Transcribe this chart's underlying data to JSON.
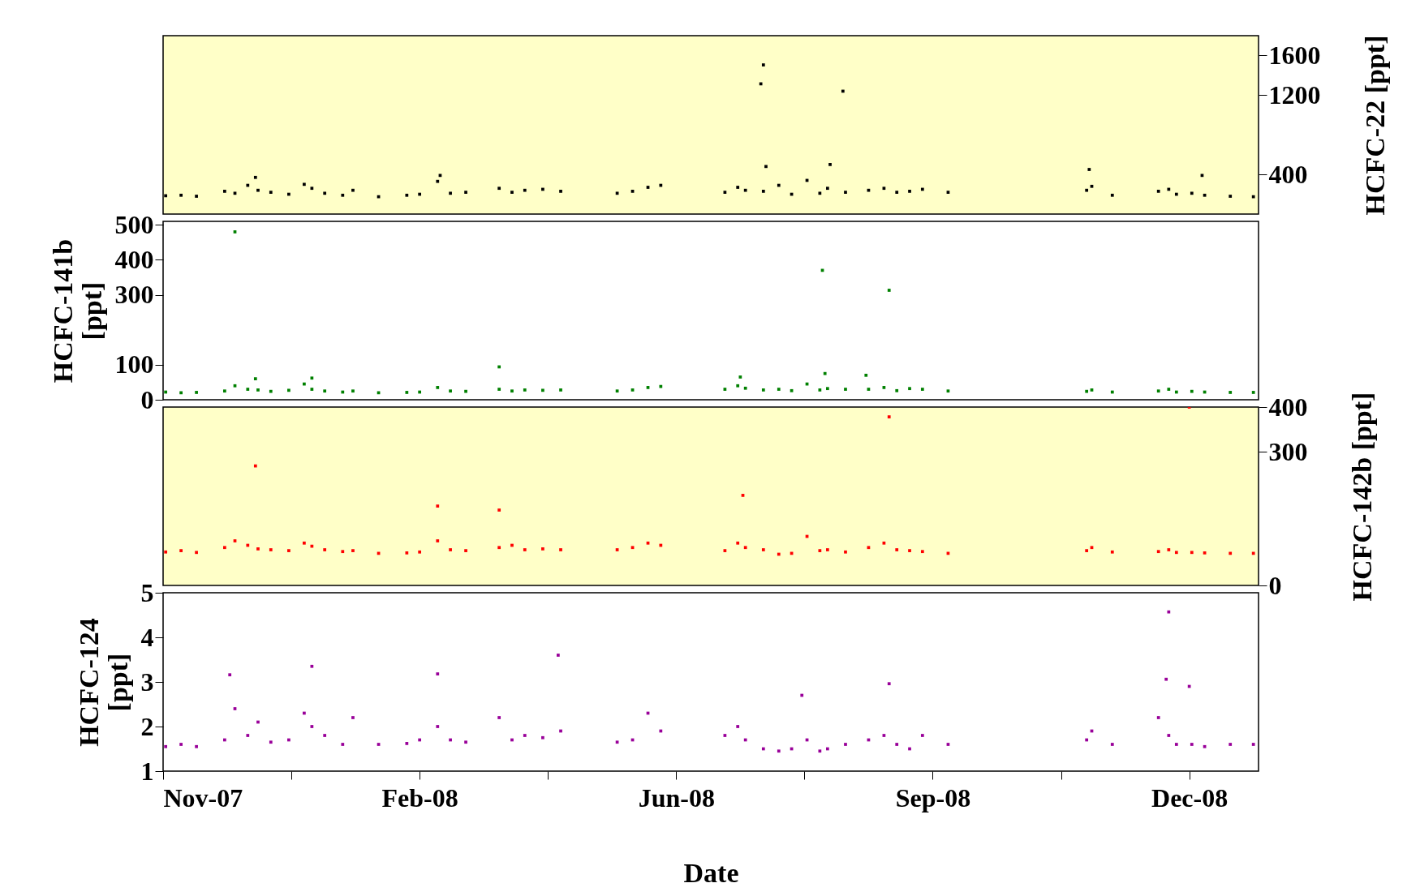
{
  "chart_data": [
    {
      "type": "scatter",
      "marker": "square",
      "grid": false,
      "legend": false,
      "tick_labels": "y",
      "xlim": [
        "2007-11-20",
        "2009-01-20"
      ],
      "y2label": "HCFC-22 [ppt]",
      "y2lim": [
        0,
        1800
      ],
      "y2ticks": [
        400,
        1200,
        1600
      ],
      "x": [
        "2007-11-21",
        "2007-11-27",
        "2007-12-03",
        "2007-12-14",
        "2007-12-18",
        "2007-12-23",
        "2007-12-27",
        "2008-01-01",
        "2008-01-08",
        "2008-01-14",
        "2008-01-17",
        "2008-01-22",
        "2008-01-29",
        "2008-02-02",
        "2008-02-12",
        "2008-02-23",
        "2008-02-28",
        "2008-03-06",
        "2008-03-11",
        "2008-03-17",
        "2008-03-30",
        "2008-04-04",
        "2008-04-09",
        "2008-04-16",
        "2008-04-23",
        "2008-05-15",
        "2008-05-21",
        "2008-05-27",
        "2008-06-01",
        "2008-06-26",
        "2008-07-01",
        "2008-07-04",
        "2008-07-11",
        "2008-07-17",
        "2008-07-22",
        "2008-07-28",
        "2008-08-02",
        "2008-08-05",
        "2008-08-12",
        "2008-08-21",
        "2008-08-27",
        "2008-09-01",
        "2008-09-06",
        "2008-09-11",
        "2008-09-21",
        "2008-11-14",
        "2008-11-16",
        "2008-11-24",
        "2008-12-12",
        "2008-12-16",
        "2008-12-19",
        "2008-12-25",
        "2008-12-30",
        "2009-01-09",
        "2009-01-18",
        "2008-07-11",
        "2008-07-10",
        "2008-08-11",
        "2008-07-12",
        "2008-08-06",
        "2008-11-15",
        "2007-12-26",
        "2008-03-07",
        "2008-12-29"
      ],
      "series": [
        {
          "color": "#000000",
          "axis": "y2",
          "values": [
            185,
            190,
            180,
            230,
            210,
            290,
            240,
            220,
            200,
            300,
            260,
            210,
            190,
            240,
            175,
            190,
            200,
            330,
            210,
            220,
            260,
            220,
            240,
            250,
            230,
            210,
            230,
            270,
            290,
            220,
            270,
            240,
            230,
            290,
            200,
            340,
            210,
            260,
            220,
            240,
            260,
            220,
            230,
            250,
            220,
            240,
            280,
            190,
            230,
            250,
            200,
            210,
            190,
            180,
            175,
            1505,
            1314,
            1240,
            480,
            500,
            450,
            370,
            390,
            390
          ]
        }
      ]
    },
    {
      "type": "scatter",
      "marker": "square",
      "grid": false,
      "legend": false,
      "tick_labels": "y",
      "xlim": [
        "2007-11-20",
        "2009-01-20"
      ],
      "ylabel": "HCFC-141b [ppt]",
      "ylim": [
        0,
        510
      ],
      "yticks": [
        0,
        100,
        300,
        400,
        500
      ],
      "x": [
        "2007-11-21",
        "2007-11-27",
        "2007-12-03",
        "2007-12-14",
        "2007-12-18",
        "2007-12-23",
        "2007-12-27",
        "2008-01-01",
        "2008-01-08",
        "2008-01-14",
        "2008-01-17",
        "2008-01-22",
        "2008-01-29",
        "2008-02-02",
        "2008-02-12",
        "2008-02-23",
        "2008-02-28",
        "2008-03-06",
        "2008-03-11",
        "2008-03-17",
        "2008-03-30",
        "2008-04-04",
        "2008-04-09",
        "2008-04-16",
        "2008-04-23",
        "2008-05-15",
        "2008-05-21",
        "2008-05-27",
        "2008-06-01",
        "2008-06-26",
        "2008-07-01",
        "2008-07-04",
        "2008-07-11",
        "2008-07-17",
        "2008-07-22",
        "2008-07-28",
        "2008-08-02",
        "2008-08-05",
        "2008-08-12",
        "2008-08-21",
        "2008-08-27",
        "2008-09-01",
        "2008-09-06",
        "2008-09-11",
        "2008-09-21",
        "2008-11-14",
        "2008-11-16",
        "2008-11-24",
        "2008-12-12",
        "2008-12-16",
        "2008-12-19",
        "2008-12-25",
        "2008-12-30",
        "2009-01-09",
        "2009-01-18",
        "2007-12-18",
        "2008-08-03",
        "2008-08-29",
        "2008-03-30",
        "2008-08-04",
        "2008-08-20",
        "2007-12-26",
        "2008-01-17",
        "2008-07-02"
      ],
      "series": [
        {
          "color": "#008000",
          "values": [
            22,
            20,
            21,
            25,
            40,
            30,
            28,
            24,
            27,
            45,
            30,
            25,
            22,
            25,
            20,
            21,
            22,
            35,
            25,
            24,
            30,
            25,
            28,
            27,
            28,
            25,
            28,
            35,
            38,
            30,
            40,
            33,
            28,
            30,
            26,
            45,
            28,
            32,
            30,
            30,
            35,
            26,
            32,
            30,
            25,
            24,
            28,
            22,
            25,
            30,
            22,
            24,
            22,
            21,
            21,
            480,
            370,
            313,
            94,
            75,
            70,
            60,
            62,
            65
          ]
        }
      ]
    },
    {
      "type": "scatter",
      "marker": "square",
      "grid": false,
      "legend": false,
      "tick_labels": "y",
      "xlim": [
        "2007-11-20",
        "2009-01-20"
      ],
      "y2label": "HCFC-142b [ppt]",
      "y2lim": [
        0,
        400
      ],
      "y2ticks": [
        0,
        300,
        400
      ],
      "x": [
        "2007-11-21",
        "2007-11-27",
        "2007-12-03",
        "2007-12-14",
        "2007-12-18",
        "2007-12-23",
        "2007-12-27",
        "2008-01-01",
        "2008-01-08",
        "2008-01-14",
        "2008-01-17",
        "2008-01-22",
        "2008-01-29",
        "2008-02-02",
        "2008-02-12",
        "2008-02-23",
        "2008-02-28",
        "2008-03-06",
        "2008-03-11",
        "2008-03-17",
        "2008-03-30",
        "2008-04-04",
        "2008-04-09",
        "2008-04-16",
        "2008-04-23",
        "2008-05-15",
        "2008-05-21",
        "2008-05-27",
        "2008-06-01",
        "2008-06-26",
        "2008-07-01",
        "2008-07-04",
        "2008-07-11",
        "2008-07-17",
        "2008-07-22",
        "2008-07-28",
        "2008-08-02",
        "2008-08-05",
        "2008-08-12",
        "2008-08-21",
        "2008-08-27",
        "2008-09-01",
        "2008-09-06",
        "2008-09-11",
        "2008-09-21",
        "2008-11-14",
        "2008-11-16",
        "2008-11-24",
        "2008-12-12",
        "2008-12-16",
        "2008-12-19",
        "2008-12-25",
        "2008-12-30",
        "2009-01-09",
        "2009-01-18",
        "2007-12-26",
        "2008-08-29",
        "2008-12-24",
        "2008-07-03",
        "2008-03-06",
        "2008-03-30"
      ],
      "series": [
        {
          "color": "#ff0000",
          "axis": "y2",
          "values": [
            75,
            78,
            74,
            85,
            100,
            90,
            82,
            80,
            78,
            95,
            88,
            80,
            76,
            78,
            72,
            73,
            75,
            100,
            80,
            78,
            85,
            90,
            80,
            82,
            80,
            80,
            85,
            95,
            90,
            78,
            95,
            85,
            80,
            70,
            72,
            110,
            78,
            80,
            75,
            85,
            95,
            80,
            78,
            76,
            72,
            78,
            85,
            75,
            76,
            80,
            74,
            74,
            73,
            72,
            72,
            268,
            378,
            400,
            202,
            178,
            169
          ]
        }
      ]
    },
    {
      "type": "scatter",
      "marker": "square",
      "grid": false,
      "legend": false,
      "xlabel": "Date",
      "xlim": [
        "2007-11-20",
        "2009-01-20"
      ],
      "xticks": [
        {
          "value": "2007-11-20",
          "label": "Nov-07"
        },
        {
          "value": "2008-01-09",
          "label": null
        },
        {
          "value": "2008-02-28",
          "label": "Feb-08"
        },
        {
          "value": "2008-04-18",
          "label": null
        },
        {
          "value": "2008-06-07",
          "label": "Jun-08"
        },
        {
          "value": "2008-07-27",
          "label": null
        },
        {
          "value": "2008-09-15",
          "label": "Sep-08"
        },
        {
          "value": "2008-11-04",
          "label": null
        },
        {
          "value": "2008-12-24",
          "label": "Dec-08"
        }
      ],
      "ylabel": "HCFC-124 [ppt]",
      "ylim": [
        1,
        5
      ],
      "yticks": [
        1,
        2,
        3,
        4,
        5
      ],
      "x": [
        "2007-11-21",
        "2007-11-27",
        "2007-12-03",
        "2007-12-14",
        "2007-12-18",
        "2007-12-23",
        "2007-12-27",
        "2008-01-01",
        "2008-01-08",
        "2008-01-14",
        "2008-01-17",
        "2008-01-22",
        "2008-01-29",
        "2008-02-02",
        "2008-02-12",
        "2008-02-23",
        "2008-02-28",
        "2008-03-06",
        "2008-03-11",
        "2008-03-17",
        "2008-03-30",
        "2008-04-04",
        "2008-04-09",
        "2008-04-16",
        "2008-04-23",
        "2008-05-15",
        "2008-05-21",
        "2008-05-27",
        "2008-06-01",
        "2008-06-26",
        "2008-07-01",
        "2008-07-04",
        "2008-07-11",
        "2008-07-17",
        "2008-07-22",
        "2008-07-28",
        "2008-08-02",
        "2008-08-05",
        "2008-08-12",
        "2008-08-21",
        "2008-08-27",
        "2008-09-01",
        "2008-09-06",
        "2008-09-11",
        "2008-09-21",
        "2008-11-14",
        "2008-11-16",
        "2008-11-24",
        "2008-12-12",
        "2008-12-16",
        "2008-12-19",
        "2008-12-25",
        "2008-12-30",
        "2009-01-09",
        "2009-01-18",
        "2007-12-16",
        "2008-01-17",
        "2008-03-06",
        "2008-04-22",
        "2008-08-29",
        "2008-12-16",
        "2008-12-15",
        "2008-12-24",
        "2008-07-26"
      ],
      "series": [
        {
          "color": "#990099",
          "values": [
            1.55,
            1.6,
            1.55,
            1.7,
            2.4,
            1.8,
            2.1,
            1.65,
            1.7,
            2.3,
            2.0,
            1.8,
            1.6,
            2.2,
            1.6,
            1.62,
            1.7,
            2.0,
            1.7,
            1.65,
            2.2,
            1.7,
            1.8,
            1.75,
            1.9,
            1.65,
            1.7,
            2.3,
            1.9,
            1.8,
            2.0,
            1.7,
            1.5,
            1.45,
            1.5,
            1.7,
            1.45,
            1.5,
            1.6,
            1.7,
            1.8,
            1.6,
            1.5,
            1.8,
            1.6,
            1.7,
            1.9,
            1.6,
            2.2,
            1.8,
            1.6,
            1.6,
            1.55,
            1.6,
            1.6,
            3.16,
            3.35,
            3.18,
            3.6,
            2.96,
            4.57,
            3.06,
            2.9,
            2.7
          ]
        }
      ]
    }
  ]
}
